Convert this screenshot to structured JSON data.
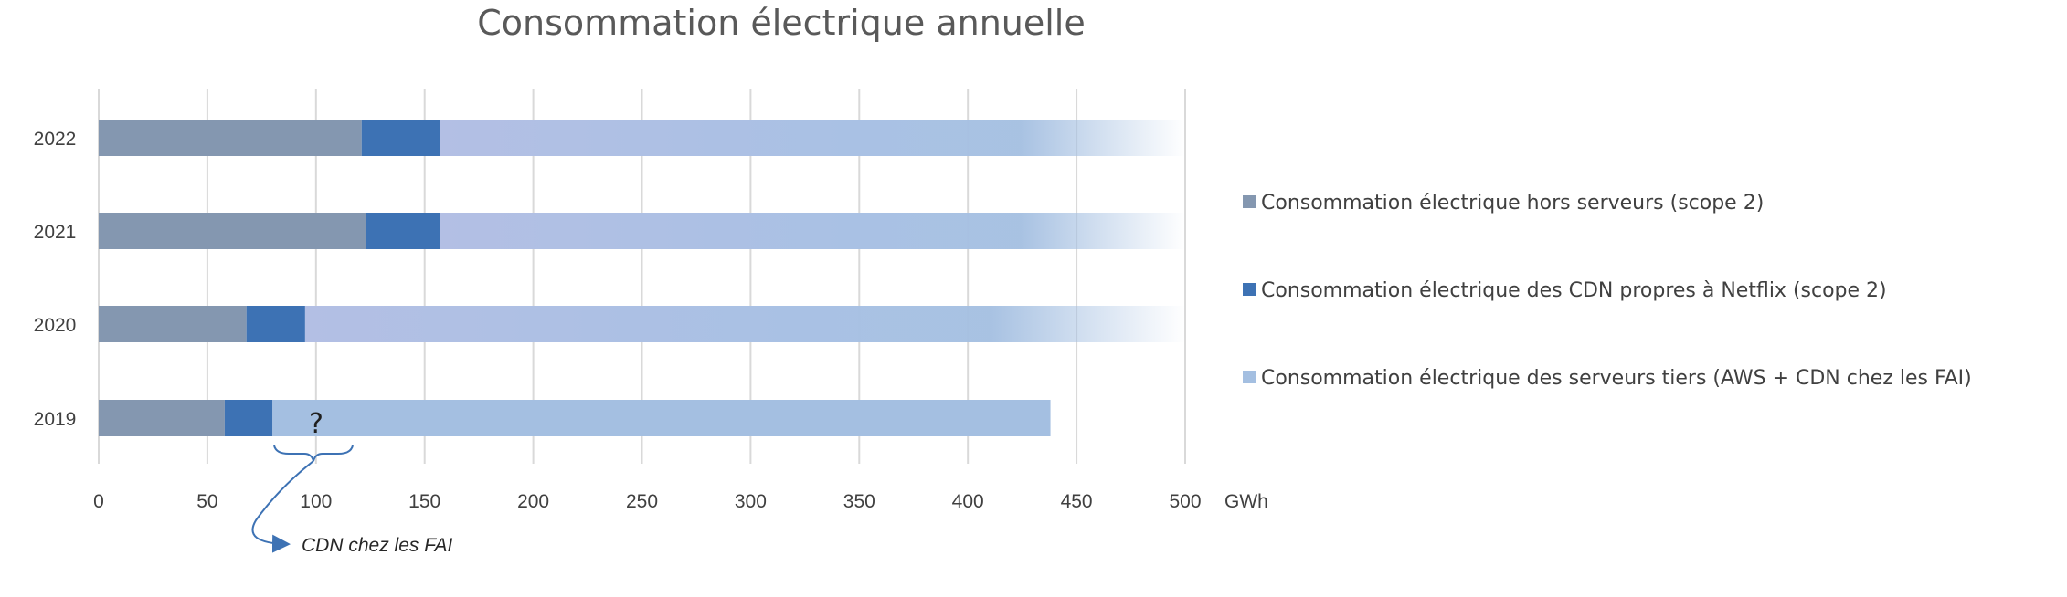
{
  "chart_data": {
    "type": "bar",
    "orientation": "horizontal",
    "stacked": true,
    "title": "Consommation électrique annuelle",
    "categories": [
      "2022",
      "2021",
      "2020",
      "2019"
    ],
    "unit_label": "GWh",
    "xlim": [
      0,
      500
    ],
    "x_ticks": [
      "0",
      "50",
      "100",
      "150",
      "200",
      "250",
      "300",
      "350",
      "400",
      "450",
      "500"
    ],
    "grid": "vertical",
    "legend_position": "right",
    "series": [
      {
        "name": "Consommation électrique hors serveurs (scope 2)",
        "color": "#8497b0",
        "values": [
          121,
          123,
          68,
          58
        ]
      },
      {
        "name": "Consommation électrique des CDN propres à Netflix (scope 2)",
        "color": "#3d72b4",
        "values": [
          36,
          34,
          27,
          22
        ]
      },
      {
        "name": "Consommation électrique des serveurs tiers (AWS + CDN chez les FAI)",
        "color": "#a4bfe1",
        "values": [
          343,
          343,
          405,
          358
        ],
        "faded_to_end": [
          true,
          true,
          true,
          false
        ]
      }
    ],
    "annotations": {
      "question_mark": "?",
      "brace_label": "CDN chez les FAI"
    }
  }
}
